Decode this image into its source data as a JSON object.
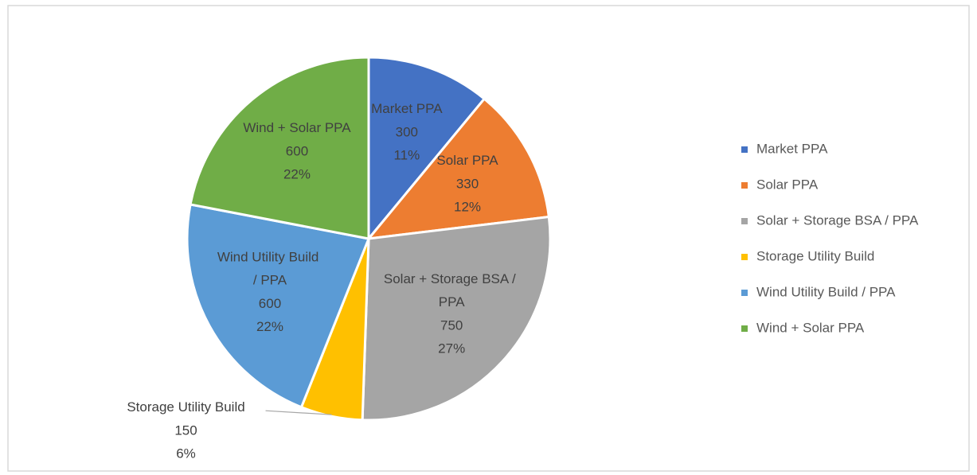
{
  "chart_data": {
    "type": "pie",
    "categories": [
      "Market PPA",
      "Solar PPA",
      "Solar + Storage BSA / PPA",
      "Storage Utility Build",
      "Wind Utility Build / PPA",
      "Wind + Solar PPA"
    ],
    "values": [
      300,
      330,
      750,
      150,
      600,
      600
    ],
    "percent_labels": [
      "11%",
      "12%",
      "27%",
      "6%",
      "22%",
      "22%"
    ],
    "colors": [
      "#4472c4",
      "#ed7d31",
      "#a5a5a5",
      "#ffc000",
      "#5b9bd5",
      "#70ad47"
    ],
    "legend": "right"
  }
}
